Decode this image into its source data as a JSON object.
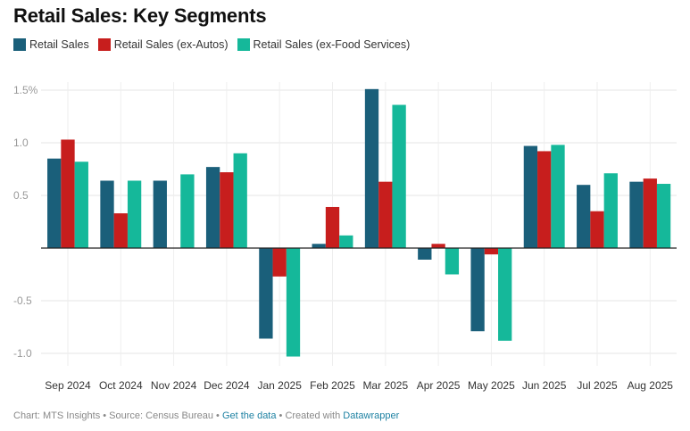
{
  "chart_data": {
    "type": "bar",
    "title": "Retail Sales: Key Segments",
    "xlabel": "",
    "ylabel": "",
    "ylim": [
      -1.0,
      1.5
    ],
    "yticks": [
      1.5,
      1.0,
      0.5,
      -0.5,
      -1.0
    ],
    "ytick_labels": [
      "1.5%",
      "1.0",
      "0.5",
      "-0.5",
      "-1.0"
    ],
    "grid": true,
    "legend_position": "top-left",
    "categories": [
      "Sep 2024",
      "Oct 2024",
      "Nov 2024",
      "Dec 2024",
      "Jan 2025",
      "Feb 2025",
      "Mar 2025",
      "Apr 2025",
      "May 2025",
      "Jun 2025",
      "Jul 2025",
      "Aug 2025"
    ],
    "series": [
      {
        "name": "Retail Sales",
        "color": "#1a5f7a",
        "values": [
          0.85,
          0.64,
          0.64,
          0.77,
          -0.86,
          0.04,
          1.51,
          -0.11,
          -0.79,
          0.97,
          0.6,
          0.63
        ]
      },
      {
        "name": "Retail Sales (ex-Autos)",
        "color": "#c71e1d",
        "values": [
          1.03,
          0.33,
          0.0,
          0.72,
          -0.27,
          0.39,
          0.63,
          0.04,
          -0.06,
          0.92,
          0.35,
          0.66
        ]
      },
      {
        "name": "Retail Sales (ex-Food Services)",
        "color": "#15b89a",
        "values": [
          0.82,
          0.64,
          0.7,
          0.9,
          -1.03,
          0.12,
          1.36,
          -0.25,
          -0.88,
          0.98,
          0.71,
          0.61
        ]
      }
    ]
  },
  "footer": {
    "chart_credit": "Chart: MTS Insights",
    "separator": " • ",
    "source": "Source: Census Bureau",
    "get_data_link": "Get the data",
    "created_with": "Created with",
    "datawrapper_link": "Datawrapper"
  }
}
